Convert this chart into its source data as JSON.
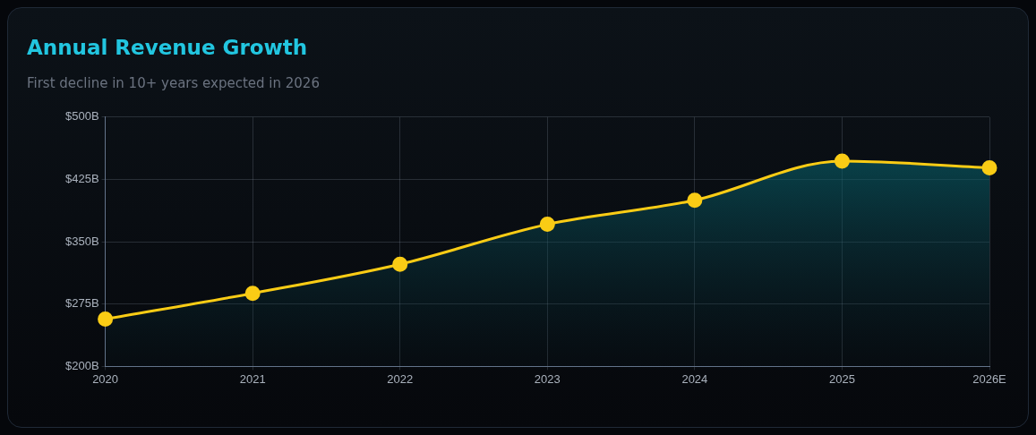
{
  "chart_data": {
    "type": "area",
    "title": "Annual Revenue Growth",
    "subtitle": "First decline in 10+ years expected in 2026",
    "categories": [
      "2020",
      "2021",
      "2022",
      "2023",
      "2024",
      "2025",
      "2026E"
    ],
    "series": [
      {
        "color": "#facc15",
        "values": [
          257,
          288,
          323,
          371,
          400,
          447,
          439
        ]
      }
    ],
    "ylim": [
      200,
      500
    ],
    "yticks": [
      {
        "value": 200,
        "label": "$200B"
      },
      {
        "value": 275,
        "label": "$275B"
      },
      {
        "value": 350,
        "label": "$350B"
      },
      {
        "value": 425,
        "label": "$425B"
      },
      {
        "value": 500,
        "label": "$500B"
      }
    ],
    "grid": true,
    "marker": "circle",
    "line_style": "solid",
    "legend": false
  }
}
